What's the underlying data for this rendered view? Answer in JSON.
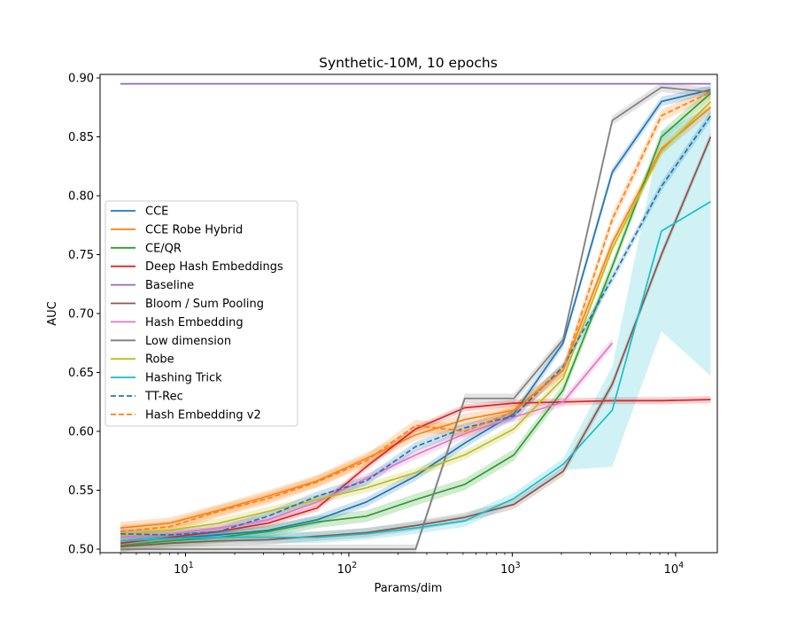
{
  "chart_data": {
    "type": "line",
    "title": "Synthetic-10M, 10 epochs",
    "xlabel": "Params/dim",
    "ylabel": "AUC",
    "xscale": "log",
    "xlim": [
      3,
      18000
    ],
    "ylim": [
      0.497,
      0.903
    ],
    "xticks": [
      {
        "value": 10,
        "base": "10",
        "exp": "1"
      },
      {
        "value": 100,
        "base": "10",
        "exp": "2"
      },
      {
        "value": 1000,
        "base": "10",
        "exp": "3"
      },
      {
        "value": 10000,
        "base": "10",
        "exp": "4"
      }
    ],
    "yticks": [
      {
        "value": 0.5,
        "label": "0.50"
      },
      {
        "value": 0.55,
        "label": "0.55"
      },
      {
        "value": 0.6,
        "label": "0.60"
      },
      {
        "value": 0.65,
        "label": "0.65"
      },
      {
        "value": 0.7,
        "label": "0.70"
      },
      {
        "value": 0.75,
        "label": "0.75"
      },
      {
        "value": 0.8,
        "label": "0.80"
      },
      {
        "value": 0.85,
        "label": "0.85"
      },
      {
        "value": 0.9,
        "label": "0.90"
      }
    ],
    "legend_position": "center-left",
    "grid": false,
    "series": [
      {
        "name": "CCE",
        "color": "#1f77b4",
        "dash": "solid",
        "x": [
          4,
          8,
          16,
          32,
          64,
          128,
          256,
          512,
          1024,
          2048,
          4096,
          8192,
          16384
        ],
        "y": [
          0.507,
          0.509,
          0.512,
          0.516,
          0.525,
          0.54,
          0.562,
          0.59,
          0.615,
          0.675,
          0.82,
          0.88,
          0.89
        ],
        "band": 0.004
      },
      {
        "name": "CCE Robe Hybrid",
        "color": "#ff7f0e",
        "dash": "solid",
        "x": [
          4,
          8,
          16,
          32,
          64,
          128,
          256,
          512,
          1024,
          2048,
          4096,
          8192,
          16384
        ],
        "y": [
          0.518,
          0.522,
          0.533,
          0.545,
          0.558,
          0.577,
          0.597,
          0.61,
          0.618,
          0.652,
          0.76,
          0.84,
          0.875
        ],
        "band": 0.005
      },
      {
        "name": "CE/QR",
        "color": "#2ca02c",
        "dash": "solid",
        "x": [
          4,
          8,
          16,
          32,
          64,
          128,
          256,
          512,
          1024,
          2048,
          4096,
          8192,
          16384
        ],
        "y": [
          0.503,
          0.507,
          0.51,
          0.515,
          0.523,
          0.528,
          0.542,
          0.555,
          0.58,
          0.635,
          0.74,
          0.85,
          0.887
        ],
        "band": 0.005
      },
      {
        "name": "Deep Hash Embeddings",
        "color": "#d62728",
        "dash": "solid",
        "x": [
          4,
          8,
          16,
          32,
          64,
          128,
          256,
          512,
          1024,
          2048,
          4096,
          8192,
          16384
        ],
        "y": [
          0.505,
          0.51,
          0.515,
          0.522,
          0.535,
          0.57,
          0.602,
          0.62,
          0.624,
          0.625,
          0.626,
          0.626,
          0.627
        ],
        "band": 0.003
      },
      {
        "name": "Baseline",
        "color": "#9467bd",
        "dash": "solid",
        "x": [
          4,
          16384
        ],
        "y": [
          0.895,
          0.895
        ],
        "band": 0
      },
      {
        "name": "Bloom / Sum Pooling",
        "color": "#8c564b",
        "dash": "solid",
        "x": [
          4,
          8,
          16,
          32,
          64,
          128,
          256,
          512,
          1024,
          2048,
          4096,
          8192,
          16384
        ],
        "y": [
          0.502,
          0.505,
          0.507,
          0.508,
          0.511,
          0.514,
          0.52,
          0.527,
          0.538,
          0.566,
          0.64,
          0.75,
          0.85
        ],
        "band": 0.004
      },
      {
        "name": "Hash Embedding",
        "color": "#e377c2",
        "dash": "solid",
        "x": [
          4,
          8,
          16,
          32,
          64,
          128,
          256,
          512,
          1024,
          2048,
          4096
        ],
        "y": [
          0.51,
          0.513,
          0.518,
          0.525,
          0.54,
          0.56,
          0.58,
          0.598,
          0.612,
          0.625,
          0.675
        ],
        "band": 0.004
      },
      {
        "name": "Low dimension",
        "color": "#7f7f7f",
        "dash": "solid",
        "x": [
          4,
          8,
          16,
          32,
          64,
          128,
          256,
          512,
          1024,
          2048,
          4096,
          8192,
          16384
        ],
        "y": [
          0.5,
          0.5,
          0.5,
          0.5,
          0.5,
          0.5,
          0.5,
          0.628,
          0.628,
          0.678,
          0.864,
          0.892,
          0.888
        ],
        "band": 0.004
      },
      {
        "name": "Robe",
        "color": "#bcbd22",
        "dash": "solid",
        "x": [
          4,
          8,
          16,
          32,
          64,
          128,
          256,
          512,
          1024,
          2048,
          4096,
          8192,
          16384
        ],
        "y": [
          0.512,
          0.516,
          0.522,
          0.532,
          0.542,
          0.552,
          0.565,
          0.58,
          0.602,
          0.645,
          0.755,
          0.838,
          0.88
        ],
        "band": 0.004
      },
      {
        "name": "Hashing Trick",
        "color": "#17becf",
        "dash": "solid",
        "x": [
          4,
          8,
          16,
          32,
          64,
          128,
          256,
          512,
          1024,
          2048,
          4096,
          8192,
          16384
        ],
        "y": [
          0.507,
          0.509,
          0.51,
          0.51,
          0.51,
          0.513,
          0.518,
          0.524,
          0.543,
          0.572,
          0.618,
          0.77,
          0.795
        ],
        "band": 0.005,
        "band_wide": {
          "8192": [
            0.685,
            0.855
          ],
          "16384": [
            0.647,
            0.875
          ],
          "4096": [
            0.57,
            0.655
          ]
        }
      },
      {
        "name": "TT-Rec",
        "color": "#1f77b4",
        "dash": "dashed",
        "x": [
          4,
          8,
          16,
          32,
          64,
          128,
          256,
          512,
          1024,
          2048,
          4096,
          8192,
          16384
        ],
        "y": [
          0.513,
          0.512,
          0.515,
          0.528,
          0.545,
          0.558,
          0.587,
          0.603,
          0.613,
          0.655,
          0.73,
          0.808,
          0.868
        ],
        "band": 0.004
      },
      {
        "name": "Hash Embedding v2",
        "color": "#ff7f0e",
        "dash": "dashed",
        "x": [
          4,
          8,
          16,
          32,
          64,
          128,
          256,
          512,
          1024,
          2048,
          4096,
          8192,
          16384
        ],
        "y": [
          0.515,
          0.519,
          0.532,
          0.543,
          0.557,
          0.575,
          0.605,
          0.6,
          0.617,
          0.652,
          0.78,
          0.868,
          0.888
        ],
        "band": 0.005
      }
    ]
  }
}
